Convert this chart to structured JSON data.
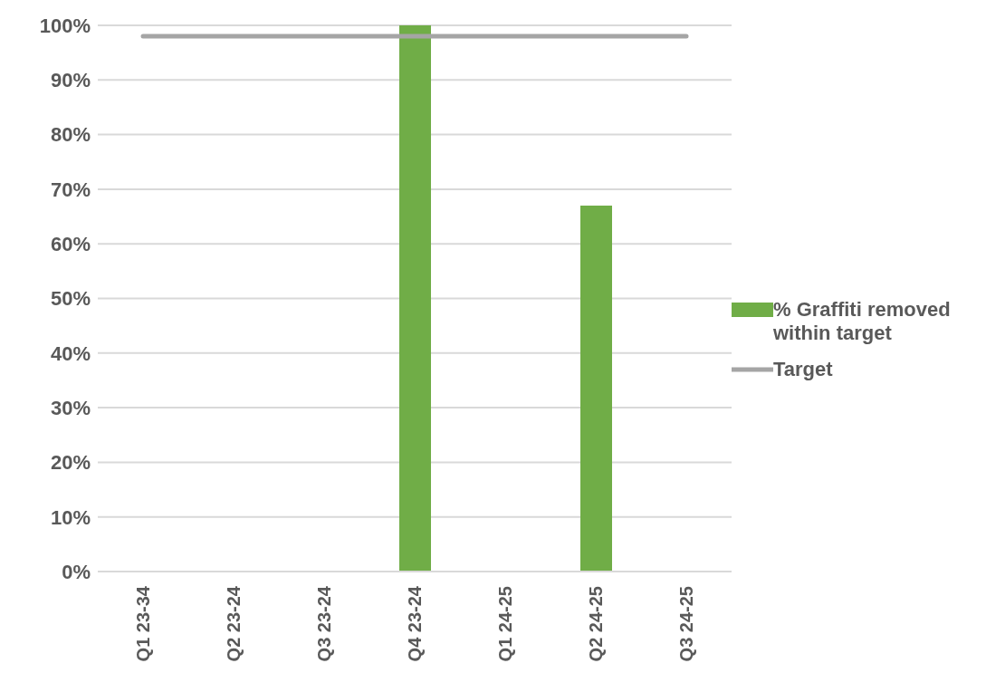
{
  "chart_data": {
    "type": "bar",
    "categories": [
      "Q1 23-34",
      "Q2 23-24",
      "Q3 23-24",
      "Q4 23-24",
      "Q1 24-25",
      "Q2 24-25",
      "Q3 24-25"
    ],
    "series": [
      {
        "name": "% Graffiti removed within target",
        "color": "#70ad47",
        "values": [
          null,
          null,
          null,
          100,
          null,
          67,
          null
        ]
      },
      {
        "name": "Target",
        "type": "line",
        "color": "#a5a5a5",
        "values": [
          98,
          98,
          98,
          98,
          98,
          98,
          98
        ]
      }
    ],
    "ylim": [
      0,
      100
    ],
    "yticks": [
      {
        "value": 0,
        "label": "0%"
      },
      {
        "value": 10,
        "label": "10%"
      },
      {
        "value": 20,
        "label": "20%"
      },
      {
        "value": 30,
        "label": "30%"
      },
      {
        "value": 40,
        "label": "40%"
      },
      {
        "value": 50,
        "label": "50%"
      },
      {
        "value": 60,
        "label": "60%"
      },
      {
        "value": 70,
        "label": "70%"
      },
      {
        "value": 80,
        "label": "80%"
      },
      {
        "value": 90,
        "label": "90%"
      },
      {
        "value": 100,
        "label": "100%"
      }
    ],
    "grid": "y",
    "legend": "right",
    "marker": "none"
  }
}
